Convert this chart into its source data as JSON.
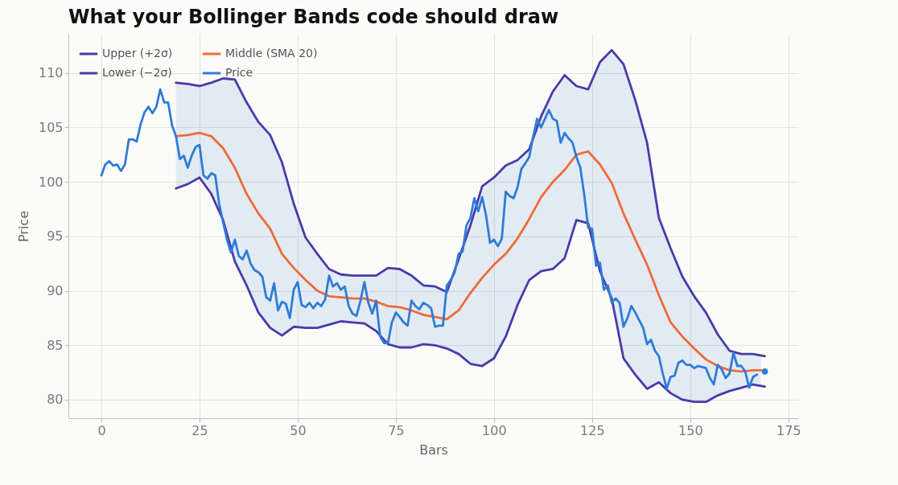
{
  "chart_data": {
    "type": "line",
    "title": "What your Bollinger Bands code should draw",
    "xlabel": "Bars",
    "ylabel": "Price",
    "xlim": [
      -8.4,
      177.5
    ],
    "ylim": [
      78.3,
      113.6
    ],
    "xticks": [
      0,
      25,
      50,
      75,
      100,
      125,
      150,
      175
    ],
    "yticks": [
      80,
      85,
      90,
      95,
      100,
      105,
      110
    ],
    "grid": true,
    "legend": "top left",
    "series": [
      {
        "name": "Upper (+2σ)",
        "color": "#4a3aa8",
        "x": [
          19,
          22,
          25,
          28,
          31,
          34,
          37,
          40,
          43,
          46,
          49,
          52,
          55,
          58,
          61,
          64,
          67,
          70,
          73,
          76,
          79,
          82,
          85,
          88,
          91,
          94,
          97,
          100,
          103,
          106,
          109,
          112,
          115,
          118,
          121,
          124,
          127,
          130,
          133,
          136,
          139,
          142,
          145,
          148,
          151,
          154,
          157,
          160,
          163,
          166,
          169
        ],
        "values": [
          109.1,
          109.0,
          108.8,
          109.1,
          109.5,
          109.4,
          107.3,
          105.5,
          104.3,
          101.8,
          98.0,
          94.9,
          93.4,
          92.0,
          91.5,
          91.4,
          91.4,
          91.4,
          92.1,
          92.0,
          91.4,
          90.5,
          90.4,
          89.9,
          92.9,
          96.0,
          99.6,
          100.4,
          101.5,
          102.0,
          103.0,
          106.0,
          108.3,
          109.8,
          108.8,
          108.5,
          111.0,
          112.1,
          110.8,
          107.5,
          103.6,
          96.7,
          93.9,
          91.3,
          89.5,
          88.0,
          86.0,
          84.5,
          84.2,
          84.2,
          84.0
        ]
      },
      {
        "name": "Lower (−2σ)",
        "color": "#4a3aa8",
        "x": [
          19,
          22,
          25,
          28,
          31,
          34,
          37,
          40,
          43,
          46,
          49,
          52,
          55,
          58,
          61,
          64,
          67,
          70,
          73,
          76,
          79,
          82,
          85,
          88,
          91,
          94,
          97,
          100,
          103,
          106,
          109,
          112,
          115,
          118,
          121,
          124,
          127,
          130,
          133,
          136,
          139,
          142,
          145,
          148,
          151,
          154,
          157,
          160,
          163,
          166,
          169
        ],
        "values": [
          99.4,
          99.8,
          100.4,
          98.9,
          96.5,
          92.7,
          90.5,
          88.0,
          86.6,
          85.9,
          86.7,
          86.6,
          86.6,
          86.9,
          87.2,
          87.1,
          87.0,
          86.3,
          85.1,
          84.8,
          84.8,
          85.1,
          85.0,
          84.7,
          84.2,
          83.3,
          83.1,
          83.8,
          85.8,
          88.7,
          91.0,
          91.8,
          92.0,
          93.0,
          96.5,
          96.2,
          91.8,
          89.3,
          83.8,
          82.3,
          81.0,
          81.6,
          80.6,
          80.0,
          79.8,
          79.8,
          80.4,
          80.8,
          81.1,
          81.4,
          81.2
        ]
      },
      {
        "name": "Middle (SMA 20)",
        "color": "#f06a35",
        "x": [
          19,
          22,
          25,
          28,
          31,
          34,
          37,
          40,
          43,
          46,
          49,
          52,
          55,
          58,
          61,
          64,
          67,
          70,
          73,
          76,
          79,
          82,
          85,
          88,
          91,
          94,
          97,
          100,
          103,
          106,
          109,
          112,
          115,
          118,
          121,
          124,
          127,
          130,
          133,
          136,
          139,
          142,
          145,
          148,
          151,
          154,
          157,
          160,
          163,
          166,
          168
        ],
        "values": [
          104.2,
          104.3,
          104.5,
          104.2,
          103.1,
          101.3,
          98.9,
          97.1,
          95.7,
          93.4,
          92.1,
          91.0,
          90.0,
          89.5,
          89.4,
          89.3,
          89.3,
          89.0,
          88.6,
          88.5,
          88.2,
          87.8,
          87.6,
          87.4,
          88.2,
          89.8,
          91.2,
          92.4,
          93.4,
          94.8,
          96.6,
          98.6,
          100.0,
          101.1,
          102.5,
          102.8,
          101.6,
          99.9,
          97.1,
          94.7,
          92.4,
          89.6,
          87.1,
          85.8,
          84.7,
          83.7,
          83.1,
          82.7,
          82.6,
          82.7,
          82.7
        ],
        "upper": [
          109.1,
          109.0,
          108.8,
          109.1,
          109.5,
          109.4,
          107.3,
          105.5,
          104.3,
          101.8,
          98.0,
          94.9,
          93.4,
          92.0,
          91.5,
          91.4,
          91.4,
          91.4,
          92.1,
          92.0,
          91.4,
          90.5,
          90.4,
          89.9,
          92.9,
          96.0,
          99.6,
          100.4,
          101.5,
          102.0,
          103.0,
          106.0,
          108.3,
          109.8,
          108.8,
          108.5,
          111.0,
          112.1,
          110.8,
          107.5,
          103.6,
          96.7,
          93.9,
          91.3,
          89.5,
          88.0,
          86.0,
          84.5,
          84.2,
          84.2,
          84.0
        ],
        "lower": [
          99.4,
          99.8,
          100.4,
          98.9,
          96.5,
          92.7,
          90.5,
          88.0,
          86.6,
          85.9,
          86.7,
          86.6,
          86.6,
          86.9,
          87.2,
          87.1,
          87.0,
          86.3,
          85.1,
          84.8,
          84.8,
          85.1,
          85.0,
          84.7,
          84.2,
          83.3,
          83.1,
          83.8,
          85.8,
          88.7,
          91.0,
          91.8,
          92.0,
          93.0,
          96.5,
          96.2,
          91.8,
          89.3,
          83.8,
          82.3,
          81.0,
          81.6,
          80.6,
          80.0,
          79.8,
          79.8,
          80.4,
          80.8,
          81.1,
          81.4,
          81.2
        ]
      },
      {
        "name": "Price",
        "color": "#2f7bd8",
        "x": [
          0,
          1,
          2,
          3,
          4,
          5,
          6,
          7,
          8,
          9,
          10,
          11,
          12,
          13,
          14,
          15,
          16,
          17,
          18,
          19,
          20,
          21,
          22,
          23,
          24,
          25,
          26,
          27,
          28,
          29,
          30,
          31,
          32,
          33,
          34,
          35,
          36,
          37,
          38,
          39,
          40,
          41,
          42,
          43,
          44,
          45,
          46,
          47,
          48,
          49,
          50,
          51,
          52,
          53,
          54,
          55,
          56,
          57,
          58,
          59,
          60,
          61,
          62,
          63,
          64,
          65,
          66,
          67,
          68,
          69,
          70,
          71,
          72,
          73,
          74,
          75,
          76,
          77,
          78,
          79,
          80,
          81,
          82,
          83,
          84,
          85,
          86,
          87,
          88,
          89,
          90,
          91,
          92,
          93,
          94,
          95,
          96,
          97,
          98,
          99,
          100,
          101,
          102,
          103,
          104,
          105,
          106,
          107,
          108,
          109,
          110,
          111,
          112,
          113,
          114,
          115,
          116,
          117,
          118,
          119,
          120,
          121,
          122,
          123,
          124,
          125,
          126,
          127,
          128,
          129,
          130,
          131,
          132,
          133,
          134,
          135,
          136,
          137,
          138,
          139,
          140,
          141,
          142,
          143,
          144,
          145,
          146,
          147,
          148,
          149,
          150,
          151,
          152,
          153,
          154,
          155,
          156,
          157,
          158,
          159,
          160,
          161,
          162,
          163,
          164,
          165,
          166,
          167
        ],
        "values": [
          100.6,
          101.6,
          101.9,
          101.5,
          101.6,
          101.0,
          101.6,
          103.9,
          103.9,
          103.7,
          105.3,
          106.4,
          106.9,
          106.3,
          106.9,
          108.5,
          107.3,
          107.3,
          105.2,
          104.2,
          102.1,
          102.4,
          101.3,
          102.4,
          103.2,
          103.4,
          100.6,
          100.3,
          100.8,
          100.6,
          98.0,
          96.3,
          94.7,
          93.5,
          94.7,
          93.2,
          92.9,
          93.7,
          92.5,
          91.9,
          91.7,
          91.3,
          89.4,
          89.1,
          90.7,
          88.2,
          89.0,
          88.8,
          87.5,
          90.1,
          90.8,
          88.7,
          88.5,
          88.9,
          88.4,
          88.9,
          88.6,
          89.2,
          91.4,
          90.4,
          90.7,
          90.1,
          90.4,
          88.6,
          87.9,
          87.7,
          89.1,
          90.8,
          88.9,
          87.9,
          89.1,
          85.8,
          85.2,
          85.2,
          87.1,
          88.0,
          87.6,
          87.1,
          86.8,
          89.1,
          88.6,
          88.3,
          88.9,
          88.7,
          88.4,
          86.7,
          86.8,
          86.8,
          90.5,
          91.0,
          91.7,
          93.4,
          93.6,
          96.0,
          96.7,
          98.5,
          97.3,
          98.6,
          96.9,
          94.4,
          94.7,
          94.1,
          94.8,
          99.1,
          98.7,
          98.5,
          99.5,
          101.2,
          101.7,
          102.3,
          104.2,
          105.8,
          105.0,
          105.8,
          106.6,
          105.8,
          105.6,
          103.6,
          104.5,
          104.0,
          103.6,
          102.3,
          101.3,
          98.8,
          95.8,
          95.7,
          92.3,
          92.6,
          90.1,
          90.5,
          88.9,
          89.3,
          88.9,
          86.7,
          87.5,
          88.6,
          88.0,
          87.3,
          86.6,
          85.1,
          85.5,
          84.5,
          84.0,
          82.4,
          81.0,
          82.1,
          82.2,
          83.4,
          83.6,
          83.2,
          83.2,
          82.9,
          83.1,
          83.0,
          82.9,
          82.0,
          81.4,
          83.2,
          82.8,
          82.0,
          82.4,
          84.3,
          83.1,
          83.1,
          82.6,
          81.1,
          82.1,
          82.3
        ]
      },
      {
        "type": "scatter",
        "color": "#2f7bd8",
        "x": [
          169
        ],
        "values": [
          82.6
        ]
      }
    ]
  }
}
